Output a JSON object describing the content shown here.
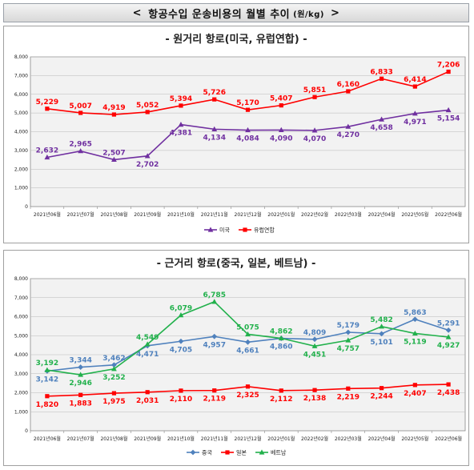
{
  "page": {
    "title_open": "<",
    "title": "항공수입 운송비용의 월별 추이",
    "unit": "(원/kg)",
    "title_close": ">"
  },
  "chart_data": [
    {
      "type": "line",
      "title": "- 원거리 항로(미국, 유럽연합) -",
      "categories": [
        "2021년06월",
        "2021년07월",
        "2021년08월",
        "2021년09월",
        "2021년10월",
        "2021년11월",
        "2021년12월",
        "2022년01월",
        "2022년02월",
        "2022년03월",
        "2022년04월",
        "2022년05월",
        "2022년06월"
      ],
      "ylim": [
        0,
        8000
      ],
      "yticks": [
        "0",
        "1,000",
        "2,000",
        "3,000",
        "4,000",
        "5,000",
        "6,000",
        "7,000",
        "8,000"
      ],
      "legend_position": "bottom",
      "series": [
        {
          "name": "미국",
          "color": "#7030a0",
          "marker": "triangle",
          "values": [
            2632,
            2965,
            2507,
            2702,
            4381,
            4134,
            4084,
            4090,
            4070,
            4270,
            4658,
            4971,
            5154
          ],
          "labels": [
            "2,632",
            "2,965",
            "2,507",
            "2,702",
            "4,381",
            "4,134",
            "4,084",
            "4,090",
            "4,070",
            "4,270",
            "4,658",
            "4,971",
            "5,154"
          ],
          "label_pos": [
            "above",
            "above",
            "above",
            "below",
            "below",
            "below",
            "below",
            "below",
            "below",
            "below",
            "below",
            "below",
            "below"
          ]
        },
        {
          "name": "유럽연합",
          "color": "#ff0000",
          "marker": "square",
          "values": [
            5229,
            5007,
            4919,
            5052,
            5394,
            5726,
            5170,
            5407,
            5851,
            6160,
            6833,
            6414,
            7206
          ],
          "labels": [
            "5,229",
            "5,007",
            "4,919",
            "5,052",
            "5,394",
            "5,726",
            "5,170",
            "5,407",
            "5,851",
            "6,160",
            "6,833",
            "6,414",
            "7,206"
          ],
          "label_pos": [
            "above",
            "above",
            "above",
            "above",
            "above",
            "above",
            "above",
            "above",
            "above",
            "above",
            "above",
            "above",
            "above"
          ]
        }
      ]
    },
    {
      "type": "line",
      "title": "- 근거리 항로(중국, 일본, 베트남) -",
      "categories": [
        "2021년06월",
        "2021년07월",
        "2021년08월",
        "2021년09월",
        "2021년10월",
        "2021년11월",
        "2021년12월",
        "2022년01월",
        "2022년02월",
        "2022년03월",
        "2022년04월",
        "2022년05월",
        "2022년06월"
      ],
      "ylim": [
        0,
        8000
      ],
      "yticks": [
        "0",
        "1,000",
        "2,000",
        "3,000",
        "4,000",
        "5,000",
        "6,000",
        "7,000",
        "8,000"
      ],
      "legend_position": "bottom",
      "series": [
        {
          "name": "중국",
          "color": "#4f81bd",
          "marker": "diamond",
          "values": [
            3142,
            3344,
            3462,
            4471,
            4705,
            4957,
            4661,
            4860,
            4809,
            5179,
            5101,
            5863,
            5291
          ],
          "labels": [
            "3,142",
            "3,344",
            "3,462",
            "4,471",
            "4,705",
            "4,957",
            "4,661",
            "4,860",
            "4,809",
            "5,179",
            "5,101",
            "5,863",
            "5,291"
          ],
          "label_pos": [
            "below",
            "above",
            "above",
            "below",
            "below",
            "below",
            "below",
            "below",
            "above",
            "above",
            "below",
            "above",
            "above"
          ]
        },
        {
          "name": "일본",
          "color": "#ff0000",
          "marker": "square",
          "values": [
            1820,
            1883,
            1975,
            2031,
            2110,
            2119,
            2325,
            2112,
            2138,
            2219,
            2244,
            2407,
            2438
          ],
          "labels": [
            "1,820",
            "1,883",
            "1,975",
            "2,031",
            "2,110",
            "2,119",
            "2,325",
            "2,112",
            "2,138",
            "2,219",
            "2,244",
            "2,407",
            "2,438"
          ],
          "label_pos": [
            "below",
            "below",
            "below",
            "below",
            "below",
            "below",
            "below",
            "below",
            "below",
            "below",
            "below",
            "below",
            "below"
          ]
        },
        {
          "name": "베트남",
          "color": "#22b14c",
          "marker": "triangle",
          "values": [
            3192,
            2946,
            3252,
            4549,
            6079,
            6785,
            5075,
            4862,
            4451,
            4757,
            5482,
            5119,
            4927
          ],
          "labels": [
            "3,192",
            "2,946",
            "3,252",
            "4,549",
            "6,079",
            "6,785",
            "5,075",
            "4,862",
            "4,451",
            "4,757",
            "5,482",
            "5,119",
            "4,927"
          ],
          "label_pos": [
            "above",
            "below",
            "below",
            "above",
            "above",
            "above",
            "above",
            "above",
            "below",
            "below",
            "above",
            "below",
            "below"
          ]
        }
      ]
    }
  ]
}
